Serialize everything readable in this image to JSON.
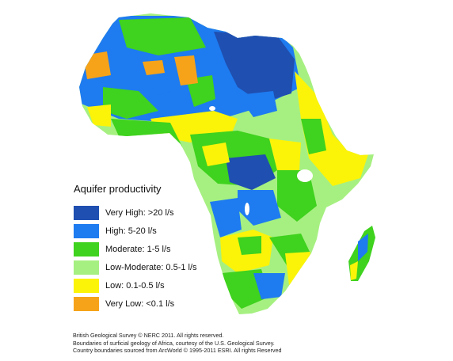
{
  "legend": {
    "title": "Aquifer productivity",
    "items": [
      {
        "label": "Very High: >20 l/s",
        "color": "#1f4fb0"
      },
      {
        "label": "High: 5-20 l/s",
        "color": "#1e7bf0"
      },
      {
        "label": "Moderate: 1-5 l/s",
        "color": "#3fd21e"
      },
      {
        "label": "Low-Moderate: 0.5-1 l/s",
        "color": "#a6f081"
      },
      {
        "label": "Low: 0.1-0.5 l/s",
        "color": "#fbf408"
      },
      {
        "label": "Very Low: <0.1 l/s",
        "color": "#f6a31a"
      }
    ]
  },
  "credits": [
    "British Geological Survey © NERC 2011.  All rights reserved.",
    "Boundaries of surficial geology of Africa, courtesy of the U.S. Geological Survey.",
    "Country boundaries sourced from ArcWorld © 1995-2011 ESRI.  All rights Reserved"
  ]
}
